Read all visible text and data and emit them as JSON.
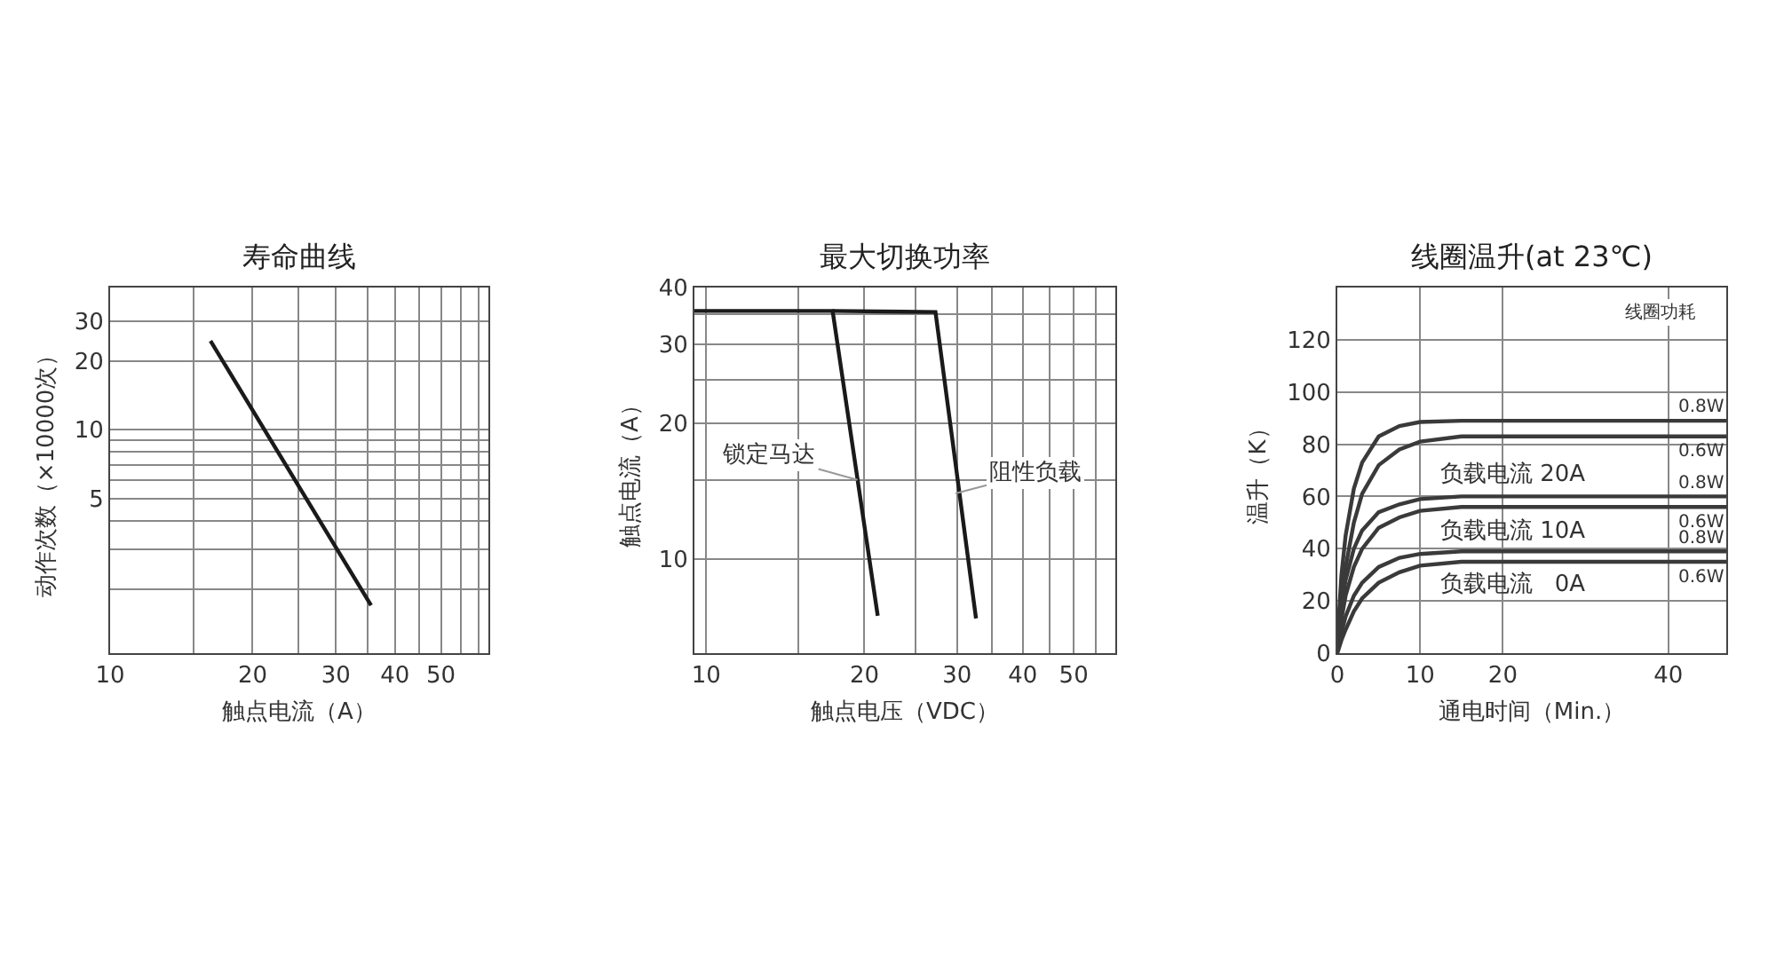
{
  "chart_data": [
    {
      "type": "line",
      "title": "寿命曲线",
      "xlabel": "触点电流（A）",
      "ylabel": "动作次数（×10000次）",
      "log": "xy",
      "grid": true,
      "xlim": [
        10,
        63
      ],
      "xticks": [
        10,
        {
          "value": 15,
          "label": null
        },
        20,
        {
          "value": 25,
          "label": null
        },
        30,
        {
          "value": 35,
          "label": null
        },
        40,
        {
          "value": 45,
          "label": null
        },
        50,
        {
          "value": 55,
          "label": null
        },
        {
          "value": 60,
          "label": null
        }
      ],
      "ylim": [
        1.05,
        42
      ],
      "yticks": [
        {
          "value": 2,
          "label": null
        },
        {
          "value": 3,
          "label": null
        },
        {
          "value": 4,
          "label": null
        },
        5,
        {
          "value": 6,
          "label": null
        },
        {
          "value": 7,
          "label": null
        },
        {
          "value": 8,
          "label": null
        },
        {
          "value": 9,
          "label": null
        },
        10,
        20,
        30
      ],
      "series": [
        {
          "color": "#1a1a1a",
          "x": [
            16.3,
            35.6
          ],
          "values": [
            24.5,
            1.7
          ]
        }
      ]
    },
    {
      "type": "line",
      "title": "最大切换功率",
      "xlabel": "触点电压（VDC）",
      "ylabel": "触点电流（A）",
      "log": "xy",
      "grid": true,
      "xlim": [
        9.5,
        60
      ],
      "xticks": [
        10,
        {
          "value": 15,
          "label": null
        },
        20,
        {
          "value": 25,
          "label": null
        },
        30,
        {
          "value": 35,
          "label": null
        },
        40,
        {
          "value": 45,
          "label": null
        },
        50,
        {
          "value": 55,
          "label": null
        }
      ],
      "ylim": [
        6.2,
        40
      ],
      "yticks": [
        10,
        {
          "value": 15,
          "label": null
        },
        20,
        {
          "value": 25,
          "label": null
        },
        30,
        {
          "value": 35,
          "label": null
        },
        40
      ],
      "series": [
        {
          "color": "#1a1a1a",
          "x": [
            9.5,
            17.4,
            21.2
          ],
          "values": [
            35.5,
            35.5,
            7.5
          ]
        },
        {
          "color": "#1a1a1a",
          "x": [
            17.4,
            27.3,
            32.6
          ],
          "values": [
            35.5,
            35.3,
            7.4
          ]
        }
      ],
      "annotations": [
        {
          "text": "锁定马达",
          "x": 19.4,
          "y": 15
        },
        {
          "text": "阻性负载",
          "x": 29.8,
          "y": 14
        }
      ]
    },
    {
      "type": "line",
      "title": "线圈温升(at 23℃)",
      "xlabel": "通电时间（Min.）",
      "ylabel": "温升（K）",
      "grid": true,
      "xlim": [
        0,
        47
      ],
      "xticks": [
        0,
        10,
        20,
        40
      ],
      "ylim": [
        0,
        140
      ],
      "yticks": [
        0,
        20,
        40,
        60,
        80,
        100,
        120
      ],
      "series": [
        {
          "name": "0.8W",
          "color": "#3a3a3a",
          "x": [
            0,
            0.5,
            1,
            2,
            3,
            5,
            7.5,
            10,
            15,
            47
          ],
          "values": [
            5,
            30,
            45,
            63,
            73,
            83,
            87,
            88.5,
            89,
            89
          ]
        },
        {
          "name": "0.6W",
          "color": "#3a3a3a",
          "x": [
            0,
            0.5,
            1,
            2,
            3,
            5,
            7.5,
            10,
            15,
            47
          ],
          "values": [
            3,
            20,
            33,
            50,
            61,
            72,
            78,
            81,
            83,
            83
          ]
        },
        {
          "name": "0.8W",
          "color": "#3a3a3a",
          "x": [
            0,
            0.5,
            1,
            2,
            3,
            5,
            7.5,
            10,
            15,
            47
          ],
          "values": [
            3,
            18,
            28,
            40,
            47,
            54,
            57,
            59,
            60,
            60
          ]
        },
        {
          "name": "0.6W",
          "color": "#3a3a3a",
          "x": [
            0,
            0.5,
            1,
            2,
            3,
            5,
            7.5,
            10,
            15,
            47
          ],
          "values": [
            2,
            13,
            22,
            33,
            40,
            48,
            52,
            54.5,
            56,
            56
          ]
        },
        {
          "name": "0.8W",
          "color": "#3a3a3a",
          "x": [
            0,
            0.5,
            1,
            2,
            3,
            5,
            7.5,
            10,
            15,
            47
          ],
          "values": [
            1,
            8,
            14,
            22,
            27,
            33,
            36.5,
            38,
            39,
            39
          ]
        },
        {
          "name": "0.6W",
          "color": "#3a3a3a",
          "x": [
            0,
            0.5,
            1,
            2,
            3,
            5,
            7.5,
            10,
            15,
            47
          ],
          "values": [
            0,
            5,
            9,
            16,
            21,
            27,
            31,
            33.5,
            35,
            35
          ]
        }
      ],
      "annotations": [
        "线圈功耗",
        "负载电流 20A",
        "负载电流 10A",
        "负载电流   0A"
      ]
    }
  ]
}
